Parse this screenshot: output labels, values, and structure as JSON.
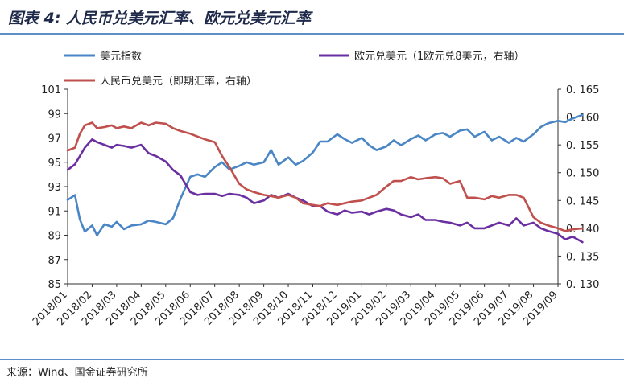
{
  "title": "图表 4: 人民币兑美元汇率、欧元兑美元汇率",
  "source": "来源：Wind、国金证券研究所",
  "colors": {
    "usd_index": "#4a86c5",
    "eur": "#6a2fa0",
    "cny": "#c0504d",
    "rule": "#5b8fc9"
  },
  "chart_data": {
    "type": "line",
    "legend": [
      {
        "key": "usd_index",
        "label": "美元指数"
      },
      {
        "key": "eur",
        "label": "欧元兑美元（1欧元兑8美元，右轴）"
      },
      {
        "key": "cny",
        "label": "人民币兑美元（即期汇率，右轴）"
      }
    ],
    "x_ticks": [
      "2018/01",
      "2018/02",
      "2018/03",
      "2018/04",
      "2018/05",
      "2018/06",
      "2018/07",
      "2018/08",
      "2018/09",
      "2018/10",
      "2018/11",
      "2018/12",
      "2019/01",
      "2019/02",
      "2019/03",
      "2019/04",
      "2019/05",
      "2019/06",
      "2019/07",
      "2019/08",
      "2019/09"
    ],
    "y_left": {
      "min": 85,
      "max": 101,
      "ticks": [
        "101",
        "99",
        "97",
        "95",
        "93",
        "91",
        "89",
        "87",
        "85"
      ]
    },
    "y_right": {
      "min": 0.13,
      "max": 0.165,
      "ticks": [
        "0.165",
        "0.160",
        "0.155",
        "0.150",
        "0.145",
        "0.140",
        "0.135",
        "0.130"
      ]
    },
    "series": [
      {
        "key": "usd_index",
        "name": "美元指数",
        "axis": "left",
        "x": [
          0,
          0.3,
          0.5,
          0.7,
          1.0,
          1.2,
          1.5,
          1.8,
          2.0,
          2.3,
          2.6,
          3.0,
          3.3,
          3.6,
          4.0,
          4.3,
          4.6,
          5.0,
          5.3,
          5.6,
          6.0,
          6.3,
          6.6,
          7.0,
          7.3,
          7.6,
          8.0,
          8.3,
          8.6,
          9.0,
          9.3,
          9.6,
          10.0,
          10.3,
          10.6,
          11.0,
          11.3,
          11.6,
          12.0,
          12.3,
          12.6,
          13.0,
          13.3,
          13.6,
          14.0,
          14.3,
          14.6,
          15.0,
          15.3,
          15.6,
          16.0,
          16.3,
          16.6,
          17.0,
          17.3,
          17.6,
          18.0,
          18.3,
          18.6,
          19.0,
          19.3,
          19.6,
          20.0,
          20.3,
          20.6,
          21.0
        ],
        "values": [
          91.9,
          92.3,
          90.3,
          89.3,
          89.8,
          89.0,
          89.9,
          89.7,
          90.1,
          89.5,
          89.8,
          89.9,
          90.2,
          90.1,
          89.9,
          90.4,
          92.0,
          93.8,
          94.0,
          93.8,
          94.6,
          95.0,
          94.4,
          94.7,
          95.0,
          94.8,
          95.0,
          96.0,
          94.8,
          95.4,
          94.8,
          95.1,
          95.8,
          96.7,
          96.7,
          97.3,
          96.9,
          96.6,
          97.0,
          96.4,
          96.0,
          96.3,
          96.8,
          96.4,
          96.9,
          97.2,
          96.8,
          97.3,
          97.4,
          97.1,
          97.6,
          97.7,
          97.1,
          97.5,
          96.8,
          97.1,
          96.6,
          97.0,
          96.7,
          97.3,
          97.9,
          98.2,
          98.4,
          98.3,
          98.6,
          98.9
        ]
      },
      {
        "key": "eur",
        "name": "欧元兑美元（1欧元兑8美元，右轴）",
        "axis": "right",
        "x": [
          0,
          0.3,
          0.5,
          0.7,
          1.0,
          1.2,
          1.5,
          1.8,
          2.0,
          2.3,
          2.6,
          3.0,
          3.3,
          3.6,
          4.0,
          4.3,
          4.6,
          5.0,
          5.3,
          5.6,
          6.0,
          6.3,
          6.6,
          7.0,
          7.3,
          7.6,
          8.0,
          8.3,
          8.6,
          9.0,
          9.3,
          9.6,
          10.0,
          10.3,
          10.6,
          11.0,
          11.3,
          11.6,
          12.0,
          12.3,
          12.6,
          13.0,
          13.3,
          13.6,
          14.0,
          14.3,
          14.6,
          15.0,
          15.3,
          15.6,
          16.0,
          16.3,
          16.6,
          17.0,
          17.3,
          17.6,
          18.0,
          18.3,
          18.6,
          19.0,
          19.3,
          19.6,
          20.0,
          20.3,
          20.6,
          21.0
        ],
        "values": [
          0.1505,
          0.1515,
          0.153,
          0.1545,
          0.156,
          0.1555,
          0.155,
          0.1545,
          0.155,
          0.1548,
          0.1545,
          0.155,
          0.1535,
          0.153,
          0.152,
          0.1505,
          0.1495,
          0.1465,
          0.146,
          0.1462,
          0.1462,
          0.1458,
          0.1462,
          0.146,
          0.1455,
          0.1445,
          0.145,
          0.146,
          0.1455,
          0.1462,
          0.1455,
          0.145,
          0.144,
          0.144,
          0.143,
          0.1425,
          0.1432,
          0.1428,
          0.143,
          0.1425,
          0.143,
          0.1435,
          0.1432,
          0.1425,
          0.142,
          0.1425,
          0.1415,
          0.1415,
          0.1412,
          0.141,
          0.1405,
          0.141,
          0.14,
          0.14,
          0.1405,
          0.141,
          0.1405,
          0.1418,
          0.1405,
          0.141,
          0.14,
          0.1395,
          0.139,
          0.138,
          0.1385,
          0.1375
        ]
      },
      {
        "key": "cny",
        "name": "人民币兑美元（即期汇率，右轴）",
        "axis": "right",
        "x": [
          0,
          0.3,
          0.5,
          0.7,
          1.0,
          1.2,
          1.5,
          1.8,
          2.0,
          2.3,
          2.6,
          3.0,
          3.3,
          3.6,
          4.0,
          4.3,
          4.6,
          5.0,
          5.3,
          5.6,
          6.0,
          6.3,
          6.6,
          7.0,
          7.3,
          7.6,
          8.0,
          8.3,
          8.6,
          9.0,
          9.3,
          9.6,
          10.0,
          10.3,
          10.6,
          11.0,
          11.3,
          11.6,
          12.0,
          12.3,
          12.6,
          13.0,
          13.3,
          13.6,
          14.0,
          14.3,
          14.6,
          15.0,
          15.3,
          15.6,
          16.0,
          16.3,
          16.6,
          17.0,
          17.3,
          17.6,
          18.0,
          18.3,
          18.6,
          19.0,
          19.3,
          19.6,
          20.0,
          20.3,
          20.6,
          21.0
        ],
        "values": [
          0.154,
          0.1545,
          0.157,
          0.1585,
          0.159,
          0.158,
          0.1582,
          0.1585,
          0.158,
          0.1583,
          0.158,
          0.159,
          0.1585,
          0.159,
          0.1588,
          0.158,
          0.1575,
          0.157,
          0.1565,
          0.156,
          0.1555,
          0.153,
          0.151,
          0.148,
          0.147,
          0.1465,
          0.146,
          0.1458,
          0.1455,
          0.146,
          0.1455,
          0.1445,
          0.1442,
          0.144,
          0.1445,
          0.1442,
          0.1445,
          0.1448,
          0.145,
          0.1455,
          0.146,
          0.1475,
          0.1485,
          0.1485,
          0.1492,
          0.1488,
          0.149,
          0.1492,
          0.149,
          0.148,
          0.1485,
          0.1455,
          0.1455,
          0.1452,
          0.1458,
          0.1455,
          0.146,
          0.146,
          0.1455,
          0.142,
          0.141,
          0.1405,
          0.14,
          0.1395,
          0.1398,
          0.14
        ]
      }
    ]
  }
}
